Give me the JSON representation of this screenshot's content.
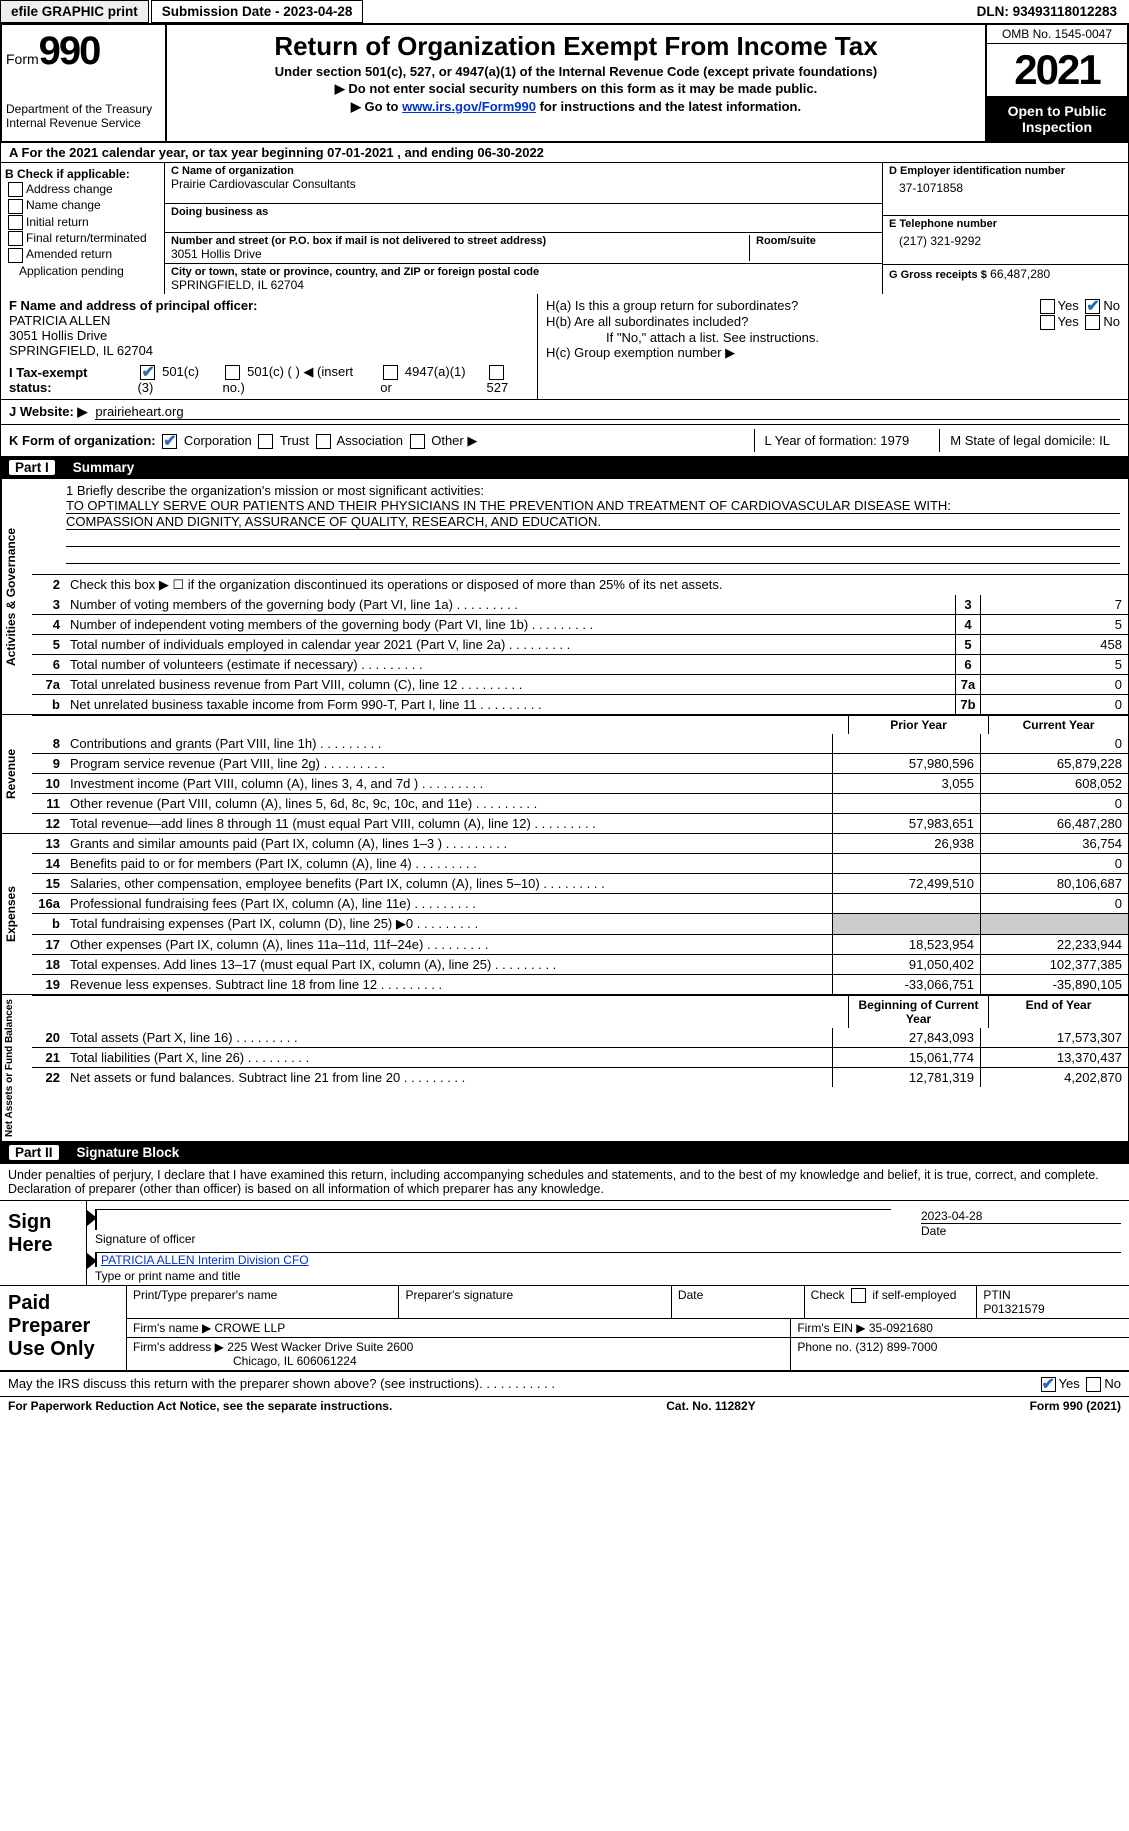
{
  "topbar": {
    "efile": "efile GRAPHIC print",
    "submission": "Submission Date - 2023-04-28",
    "dln": "DLN: 93493118012283"
  },
  "header": {
    "form_word": "Form",
    "form_num": "990",
    "dept": "Department of the Treasury Internal Revenue Service",
    "title": "Return of Organization Exempt From Income Tax",
    "sub1": "Under section 501(c), 527, or 4947(a)(1) of the Internal Revenue Code (except private foundations)",
    "sub2": "▶ Do not enter social security numbers on this form as it may be made public.",
    "sub3_pre": "▶ Go to ",
    "sub3_link": "www.irs.gov/Form990",
    "sub3_post": " for instructions and the latest information.",
    "omb": "OMB No. 1545-0047",
    "year": "2021",
    "open": "Open to Public Inspection"
  },
  "rowA": "A  For the 2021 calendar year, or tax year beginning 07-01-2021    , and ending 06-30-2022",
  "colB": {
    "head": "B Check if applicable:",
    "o1": "Address change",
    "o2": "Name change",
    "o3": "Initial return",
    "o4": "Final return/terminated",
    "o5": "Amended return",
    "o6": "Application pending"
  },
  "colC": {
    "name_lbl": "C Name of organization",
    "name": "Prairie Cardiovascular Consultants",
    "dba_lbl": "Doing business as",
    "addr_lbl": "Number and street (or P.O. box if mail is not delivered to street address)",
    "room_lbl": "Room/suite",
    "addr": "3051 Hollis Drive",
    "city_lbl": "City or town, state or province, country, and ZIP or foreign postal code",
    "city": "SPRINGFIELD, IL  62704"
  },
  "colD": {
    "ein_lbl": "D Employer identification number",
    "ein": "37-1071858",
    "tel_lbl": "E Telephone number",
    "tel": "(217) 321-9292",
    "gross_lbl": "G Gross receipts $",
    "gross": "66,487,280"
  },
  "rowF": {
    "lbl": "F Name and address of principal officer:",
    "name": "PATRICIA ALLEN",
    "addr1": "3051 Hollis Drive",
    "addr2": "SPRINGFIELD, IL  62704"
  },
  "rowH": {
    "ha": "H(a)  Is this a group return for subordinates?",
    "hb": "H(b)  Are all subordinates included?",
    "hb_note": "If \"No,\" attach a list. See instructions.",
    "hc": "H(c)  Group exemption number ▶"
  },
  "rowI": {
    "lbl": "I    Tax-exempt status:",
    "o1": "501(c)(3)",
    "o2": "501(c) (  ) ◀ (insert no.)",
    "o3": "4947(a)(1) or",
    "o4": "527"
  },
  "rowJ_lbl": "J   Website: ▶",
  "rowJ_val": "prairieheart.org",
  "rowK": {
    "lbl": "K Form of organization:",
    "o1": "Corporation",
    "o2": "Trust",
    "o3": "Association",
    "o4": "Other ▶",
    "L": "L Year of formation: 1979",
    "M": "M State of legal domicile: IL"
  },
  "partI": {
    "num": "Part I",
    "title": "Summary"
  },
  "mission": {
    "q": "1   Briefly describe the organization's mission or most significant activities:",
    "l1": "TO OPTIMALLY SERVE OUR PATIENTS AND THEIR PHYSICIANS IN THE PREVENTION AND TREATMENT OF CARDIOVASCULAR DISEASE WITH:",
    "l2": "COMPASSION AND DIGNITY, ASSURANCE OF QUALITY, RESEARCH, AND EDUCATION."
  },
  "line2": "Check this box ▶ ☐  if the organization discontinued its operations or disposed of more than 25% of its net assets.",
  "lines_gov": [
    {
      "n": "3",
      "t": "Number of voting members of the governing body (Part VI, line 1a)",
      "box": "3",
      "v": "7"
    },
    {
      "n": "4",
      "t": "Number of independent voting members of the governing body (Part VI, line 1b)",
      "box": "4",
      "v": "5"
    },
    {
      "n": "5",
      "t": "Total number of individuals employed in calendar year 2021 (Part V, line 2a)",
      "box": "5",
      "v": "458"
    },
    {
      "n": "6",
      "t": "Total number of volunteers (estimate if necessary)",
      "box": "6",
      "v": "5"
    },
    {
      "n": "7a",
      "t": "Total unrelated business revenue from Part VIII, column (C), line 12",
      "box": "7a",
      "v": "0"
    },
    {
      "n": "b",
      "t": "Net unrelated business taxable income from Form 990-T, Part I, line 11",
      "box": "7b",
      "v": "0"
    }
  ],
  "col_hdr": {
    "c1": "Prior Year",
    "c2": "Current Year"
  },
  "lines_rev": [
    {
      "n": "8",
      "t": "Contributions and grants (Part VIII, line 1h)",
      "p": "",
      "c": "0"
    },
    {
      "n": "9",
      "t": "Program service revenue (Part VIII, line 2g)",
      "p": "57,980,596",
      "c": "65,879,228"
    },
    {
      "n": "10",
      "t": "Investment income (Part VIII, column (A), lines 3, 4, and 7d )",
      "p": "3,055",
      "c": "608,052"
    },
    {
      "n": "11",
      "t": "Other revenue (Part VIII, column (A), lines 5, 6d, 8c, 9c, 10c, and 11e)",
      "p": "",
      "c": "0"
    },
    {
      "n": "12",
      "t": "Total revenue—add lines 8 through 11 (must equal Part VIII, column (A), line 12)",
      "p": "57,983,651",
      "c": "66,487,280"
    }
  ],
  "lines_exp": [
    {
      "n": "13",
      "t": "Grants and similar amounts paid (Part IX, column (A), lines 1–3 )",
      "p": "26,938",
      "c": "36,754"
    },
    {
      "n": "14",
      "t": "Benefits paid to or for members (Part IX, column (A), line 4)",
      "p": "",
      "c": "0"
    },
    {
      "n": "15",
      "t": "Salaries, other compensation, employee benefits (Part IX, column (A), lines 5–10)",
      "p": "72,499,510",
      "c": "80,106,687"
    },
    {
      "n": "16a",
      "t": "Professional fundraising fees (Part IX, column (A), line 11e)",
      "p": "",
      "c": "0"
    },
    {
      "n": "b",
      "t": "Total fundraising expenses (Part IX, column (D), line 25) ▶0",
      "p": "BLANK",
      "c": "BLANK"
    },
    {
      "n": "17",
      "t": "Other expenses (Part IX, column (A), lines 11a–11d, 11f–24e)",
      "p": "18,523,954",
      "c": "22,233,944"
    },
    {
      "n": "18",
      "t": "Total expenses. Add lines 13–17 (must equal Part IX, column (A), line 25)",
      "p": "91,050,402",
      "c": "102,377,385"
    },
    {
      "n": "19",
      "t": "Revenue less expenses. Subtract line 18 from line 12",
      "p": "-33,066,751",
      "c": "-35,890,105"
    }
  ],
  "col_hdr2": {
    "c1": "Beginning of Current Year",
    "c2": "End of Year"
  },
  "lines_net": [
    {
      "n": "20",
      "t": "Total assets (Part X, line 16)",
      "p": "27,843,093",
      "c": "17,573,307"
    },
    {
      "n": "21",
      "t": "Total liabilities (Part X, line 26)",
      "p": "15,061,774",
      "c": "13,370,437"
    },
    {
      "n": "22",
      "t": "Net assets or fund balances. Subtract line 21 from line 20",
      "p": "12,781,319",
      "c": "4,202,870"
    }
  ],
  "partII": {
    "num": "Part II",
    "title": "Signature Block"
  },
  "sig_intro": "Under penalties of perjury, I declare that I have examined this return, including accompanying schedules and statements, and to the best of my knowledge and belief, it is true, correct, and complete. Declaration of preparer (other than officer) is based on all information of which preparer has any knowledge.",
  "sign": {
    "here": "Sign Here",
    "sig_off": "Signature of officer",
    "date_lbl": "Date",
    "date": "2023-04-28",
    "name": "PATRICIA ALLEN  Interim Division CFO",
    "name_lbl": "Type or print name and title"
  },
  "prep": {
    "here": "Paid Preparer Use Only",
    "h1": "Print/Type preparer's name",
    "h2": "Preparer's signature",
    "h3": "Date",
    "h4_pre": "Check",
    "h4_post": "if self-employed",
    "h5": "PTIN",
    "ptin": "P01321579",
    "firm_lbl": "Firm's name   ▶",
    "firm": "CROWE LLP",
    "ein_lbl": "Firm's EIN ▶",
    "ein": "35-0921680",
    "addr_lbl": "Firm's address ▶",
    "addr1": "225 West Wacker Drive Suite 2600",
    "addr2": "Chicago, IL  606061224",
    "ph_lbl": "Phone no.",
    "ph": "(312) 899-7000"
  },
  "footer_q": "May the IRS discuss this return with the preparer shown above? (see instructions)",
  "foot": {
    "l": "For Paperwork Reduction Act Notice, see the separate instructions.",
    "m": "Cat. No. 11282Y",
    "r": "Form 990 (2021)"
  },
  "side": {
    "gov": "Activities & Governance",
    "rev": "Revenue",
    "exp": "Expenses",
    "net": "Net Assets or Fund Balances"
  }
}
